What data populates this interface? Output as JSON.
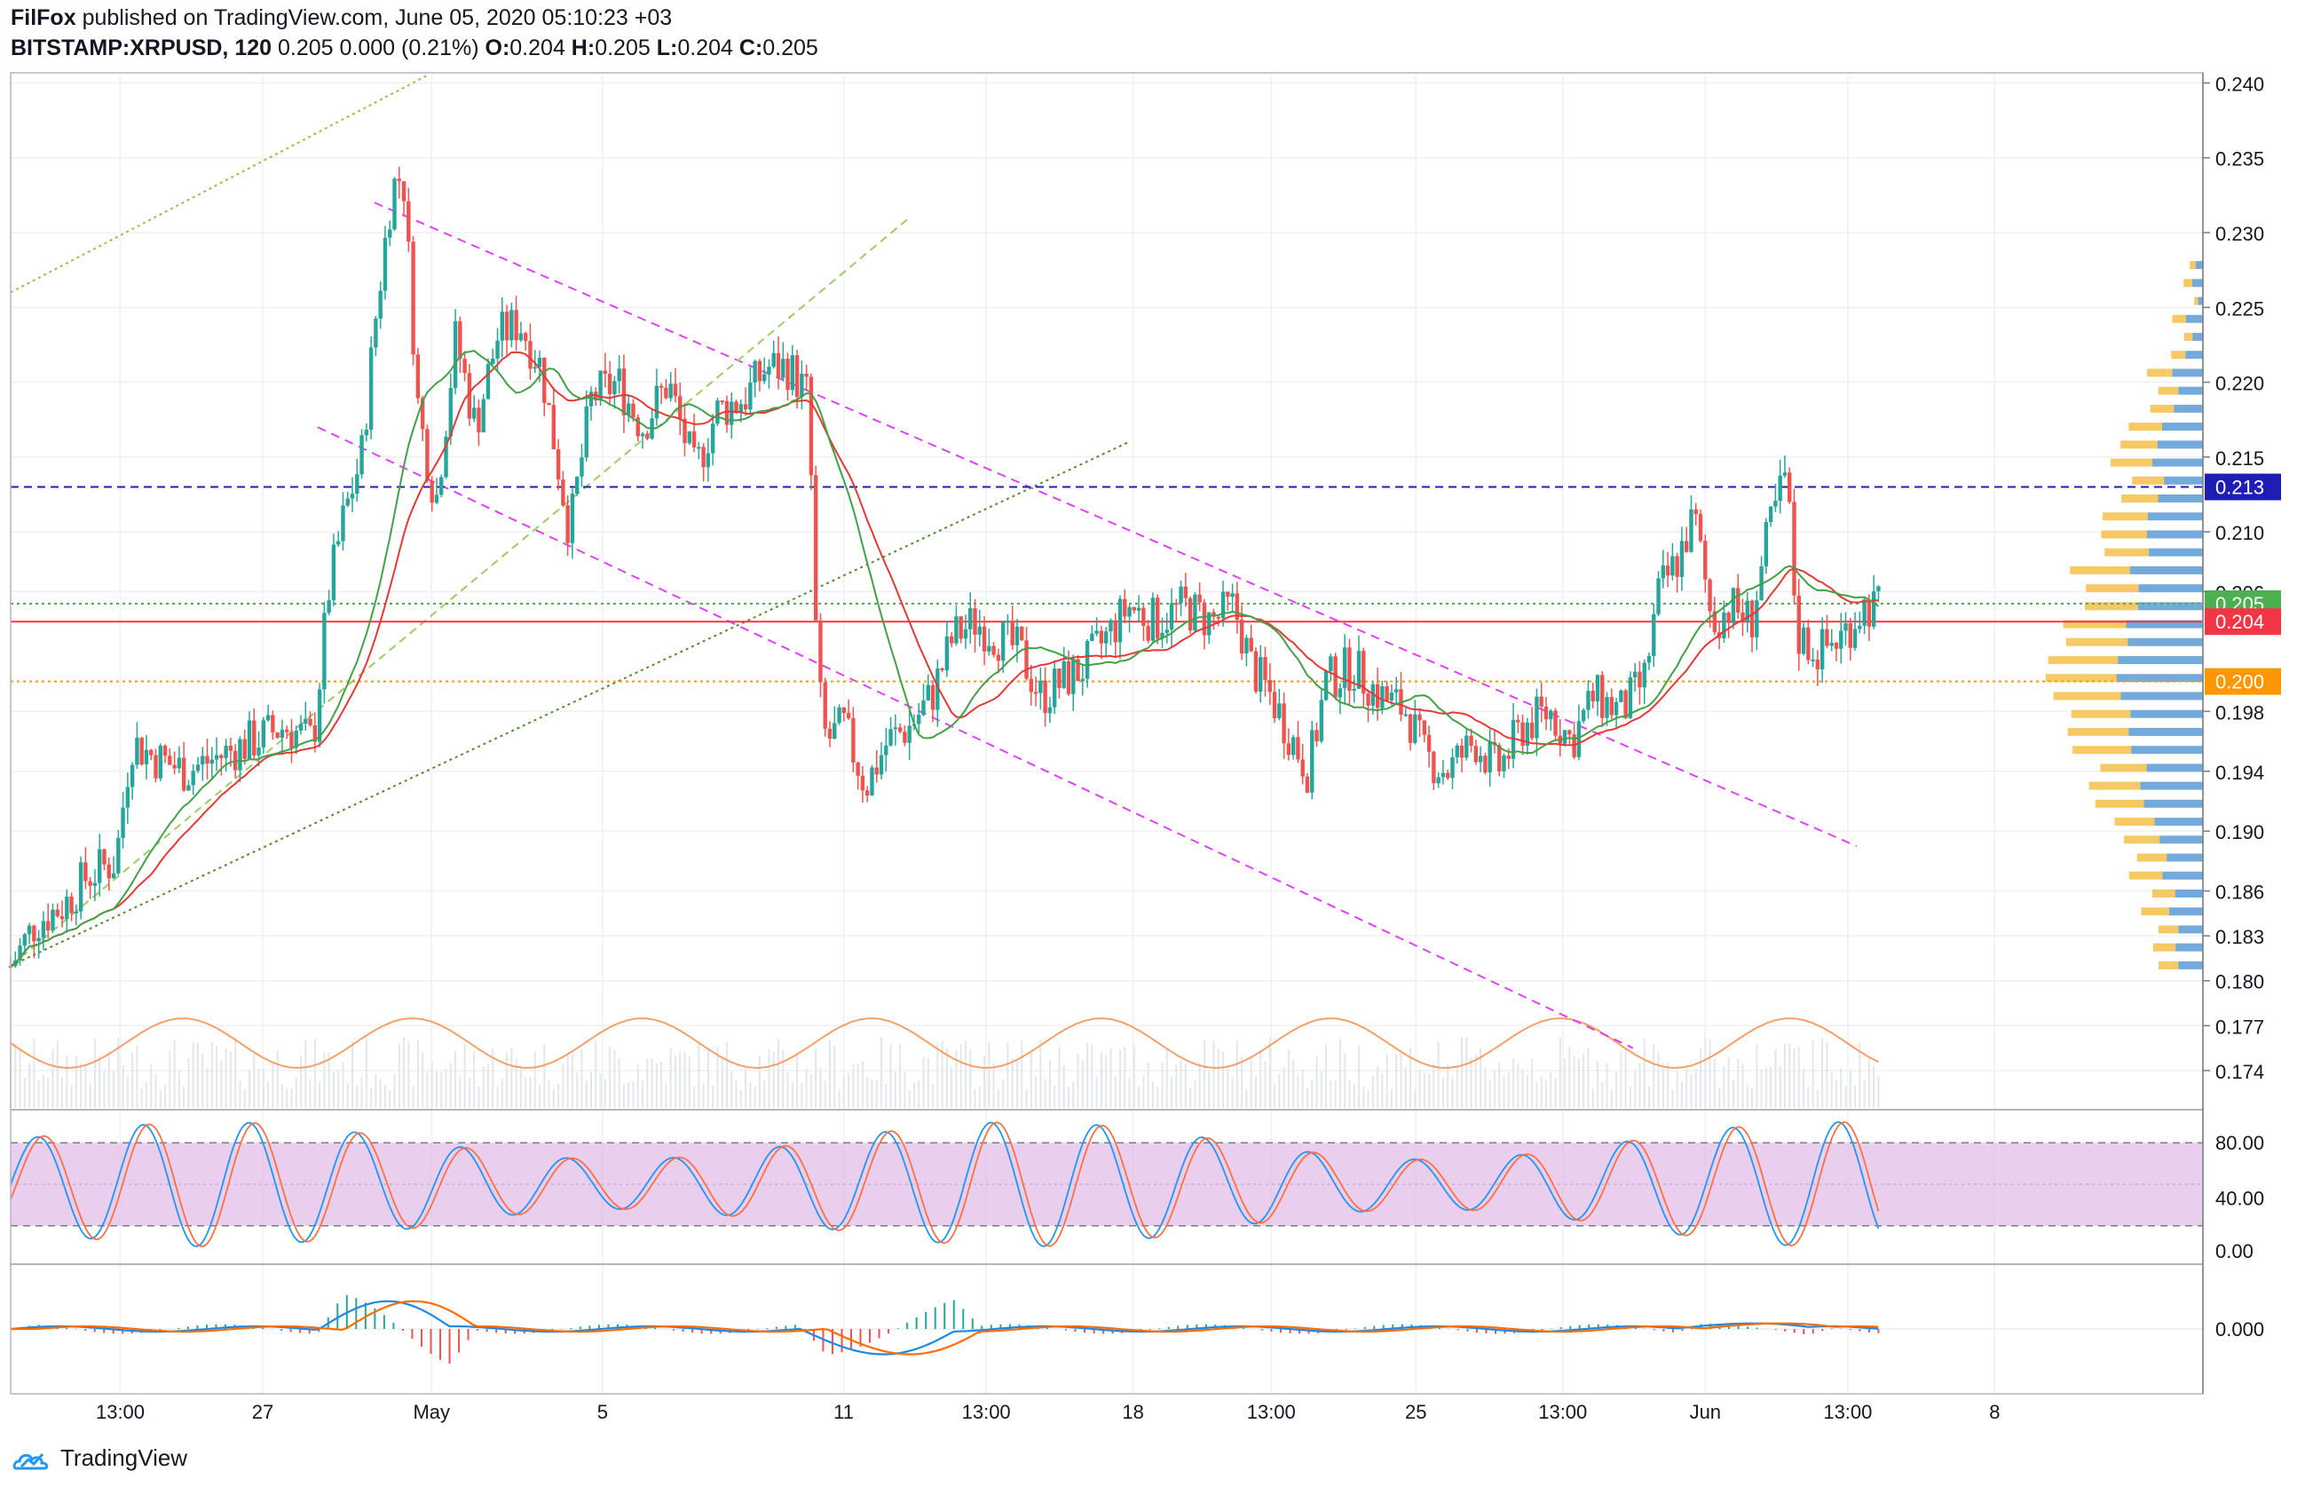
{
  "header": {
    "author": "FilFox",
    "published": "published on TradingView.com, June 05, 2020 05:10:23 +03",
    "symbol": "BITSTAMP:XRPUSD, 120",
    "change": "0.205 0.000 (0.21%)",
    "ohlc": {
      "o_label": "O:",
      "o": "0.204",
      "h_label": "H:",
      "h": "0.205",
      "l_label": "L:",
      "l": "0.204",
      "c_label": "C:",
      "c": "0.205"
    }
  },
  "footer": {
    "brand": "TradingView"
  },
  "colors": {
    "up": "#26a69a",
    "down": "#ef5350",
    "ema": "#e53935",
    "sma": "#43a047",
    "fib_magenta": "#e040fb",
    "stoch_k": "#2196f3",
    "stoch_d": "#ff7043",
    "stoch_band": "#e1bee7",
    "macd": "#1e88e5",
    "signal": "#ff6d00",
    "level_213": "#1e1eb4",
    "level_205": "#4caf50",
    "level_204": "#f23645",
    "level_200": "#ff9800"
  },
  "chart_data": {
    "type": "candlestick",
    "y_axis": {
      "ylim": [
        0.1715,
        0.2405
      ],
      "ticks": [
        "0.240",
        "0.235",
        "0.230",
        "0.225",
        "0.220",
        "0.215",
        "0.210",
        "0.206",
        "0.198",
        "0.194",
        "0.190",
        "0.186",
        "0.183",
        "0.180",
        "0.177",
        "0.174"
      ]
    },
    "x_axis": {
      "ticks": [
        {
          "label": "13:00",
          "t": 0.05
        },
        {
          "label": "27",
          "t": 0.115
        },
        {
          "label": "May",
          "t": 0.192
        },
        {
          "label": "5",
          "t": 0.27
        },
        {
          "label": "11",
          "t": 0.38
        },
        {
          "label": "13:00",
          "t": 0.445
        },
        {
          "label": "18",
          "t": 0.512
        },
        {
          "label": "13:00",
          "t": 0.575
        },
        {
          "label": "25",
          "t": 0.641
        },
        {
          "label": "13:00",
          "t": 0.708
        },
        {
          "label": "Jun",
          "t": 0.773
        },
        {
          "label": "13:00",
          "t": 0.838
        },
        {
          "label": "8",
          "t": 0.905
        }
      ]
    },
    "price_labels": [
      {
        "value": "0.213",
        "price": 0.213,
        "color": "#1e1eb4"
      },
      {
        "value": "0.205",
        "price": 0.2052,
        "color": "#4caf50"
      },
      {
        "value": "0.204",
        "price": 0.204,
        "color": "#f23645"
      },
      {
        "value": "0.200",
        "price": 0.2,
        "color": "#ff9800"
      }
    ],
    "price_path": [
      [
        0.0,
        0.181
      ],
      [
        0.012,
        0.184
      ],
      [
        0.024,
        0.185
      ],
      [
        0.035,
        0.187
      ],
      [
        0.048,
        0.188
      ],
      [
        0.055,
        0.196
      ],
      [
        0.065,
        0.195
      ],
      [
        0.08,
        0.194
      ],
      [
        0.095,
        0.195
      ],
      [
        0.11,
        0.196
      ],
      [
        0.125,
        0.197
      ],
      [
        0.138,
        0.196
      ],
      [
        0.145,
        0.206
      ],
      [
        0.152,
        0.211
      ],
      [
        0.16,
        0.215
      ],
      [
        0.167,
        0.225
      ],
      [
        0.174,
        0.233
      ],
      [
        0.179,
        0.234
      ],
      [
        0.186,
        0.218
      ],
      [
        0.194,
        0.212
      ],
      [
        0.203,
        0.223
      ],
      [
        0.212,
        0.217
      ],
      [
        0.222,
        0.223
      ],
      [
        0.232,
        0.224
      ],
      [
        0.242,
        0.221
      ],
      [
        0.255,
        0.21
      ],
      [
        0.265,
        0.219
      ],
      [
        0.277,
        0.22
      ],
      [
        0.288,
        0.217
      ],
      [
        0.3,
        0.22
      ],
      [
        0.312,
        0.214
      ],
      [
        0.322,
        0.218
      ],
      [
        0.335,
        0.219
      ],
      [
        0.345,
        0.221
      ],
      [
        0.355,
        0.221
      ],
      [
        0.364,
        0.219
      ],
      [
        0.368,
        0.2
      ],
      [
        0.372,
        0.196
      ],
      [
        0.38,
        0.197
      ],
      [
        0.39,
        0.193
      ],
      [
        0.4,
        0.196
      ],
      [
        0.41,
        0.197
      ],
      [
        0.42,
        0.199
      ],
      [
        0.43,
        0.203
      ],
      [
        0.44,
        0.204
      ],
      [
        0.45,
        0.203
      ],
      [
        0.46,
        0.202
      ],
      [
        0.47,
        0.199
      ],
      [
        0.48,
        0.2
      ],
      [
        0.49,
        0.201
      ],
      [
        0.5,
        0.203
      ],
      [
        0.51,
        0.205
      ],
      [
        0.522,
        0.204
      ],
      [
        0.535,
        0.205
      ],
      [
        0.548,
        0.204
      ],
      [
        0.558,
        0.205
      ],
      [
        0.566,
        0.201
      ],
      [
        0.575,
        0.199
      ],
      [
        0.585,
        0.196
      ],
      [
        0.592,
        0.194
      ],
      [
        0.6,
        0.2
      ],
      [
        0.612,
        0.201
      ],
      [
        0.625,
        0.199
      ],
      [
        0.637,
        0.198
      ],
      [
        0.645,
        0.195
      ],
      [
        0.655,
        0.194
      ],
      [
        0.668,
        0.196
      ],
      [
        0.678,
        0.194
      ],
      [
        0.69,
        0.197
      ],
      [
        0.702,
        0.198
      ],
      [
        0.712,
        0.196
      ],
      [
        0.722,
        0.199
      ],
      [
        0.735,
        0.198
      ],
      [
        0.745,
        0.2
      ],
      [
        0.752,
        0.206
      ],
      [
        0.76,
        0.208
      ],
      [
        0.768,
        0.211
      ],
      [
        0.776,
        0.204
      ],
      [
        0.785,
        0.205
      ],
      [
        0.794,
        0.204
      ],
      [
        0.802,
        0.21
      ],
      [
        0.81,
        0.214
      ],
      [
        0.815,
        0.203
      ],
      [
        0.825,
        0.202
      ],
      [
        0.835,
        0.203
      ],
      [
        0.845,
        0.205
      ],
      [
        0.852,
        0.205
      ]
    ]
  }
}
